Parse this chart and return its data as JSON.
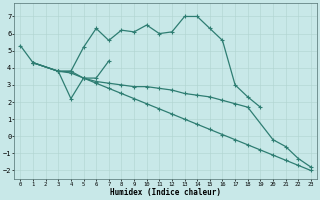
{
  "xlabel": "Humidex (Indice chaleur)",
  "xlim": [
    -0.5,
    23.5
  ],
  "ylim": [
    -2.5,
    7.8
  ],
  "xticks": [
    0,
    1,
    2,
    3,
    4,
    5,
    6,
    7,
    8,
    9,
    10,
    11,
    12,
    13,
    14,
    15,
    16,
    17,
    18,
    19,
    20,
    21,
    22,
    23
  ],
  "yticks": [
    -2,
    -1,
    0,
    1,
    2,
    3,
    4,
    5,
    6,
    7
  ],
  "bg_color": "#c8e8e8",
  "line_color": "#2e7d72",
  "grid_color": "#b0d4d0",
  "line1_x": [
    0,
    1,
    3,
    4,
    5,
    6,
    7,
    8,
    9,
    10,
    11,
    12,
    13,
    14,
    15,
    16,
    17,
    18,
    19
  ],
  "line1_y": [
    5.3,
    4.3,
    3.8,
    3.8,
    5.2,
    6.3,
    5.6,
    6.2,
    6.1,
    6.5,
    6.0,
    6.1,
    7.0,
    7.0,
    6.3,
    5.6,
    3.0,
    2.3,
    1.7
  ],
  "line2_x": [
    1,
    3,
    4,
    5,
    6,
    7
  ],
  "line2_y": [
    4.3,
    3.8,
    2.2,
    3.4,
    3.4,
    4.4
  ],
  "line3_x": [
    1,
    3,
    4,
    5,
    6,
    7,
    8,
    9,
    10,
    11,
    12,
    13,
    14,
    15,
    16,
    17,
    18,
    20,
    21,
    22,
    23
  ],
  "line3_y": [
    4.3,
    3.8,
    3.8,
    3.4,
    3.2,
    3.1,
    3.0,
    2.9,
    2.9,
    2.8,
    2.7,
    2.5,
    2.4,
    2.3,
    2.1,
    1.9,
    1.7,
    -0.2,
    -0.6,
    -1.3,
    -1.8
  ],
  "line4_x": [
    1,
    3,
    4,
    5,
    6,
    7,
    8,
    9,
    10,
    11,
    12,
    13,
    14,
    15,
    16,
    17,
    18,
    19,
    20,
    21,
    22,
    23
  ],
  "line4_y": [
    4.3,
    3.8,
    3.7,
    3.4,
    3.1,
    2.8,
    2.5,
    2.2,
    1.9,
    1.6,
    1.3,
    1.0,
    0.7,
    0.4,
    0.1,
    -0.2,
    -0.5,
    -0.8,
    -1.1,
    -1.4,
    -1.7,
    -2.0
  ]
}
